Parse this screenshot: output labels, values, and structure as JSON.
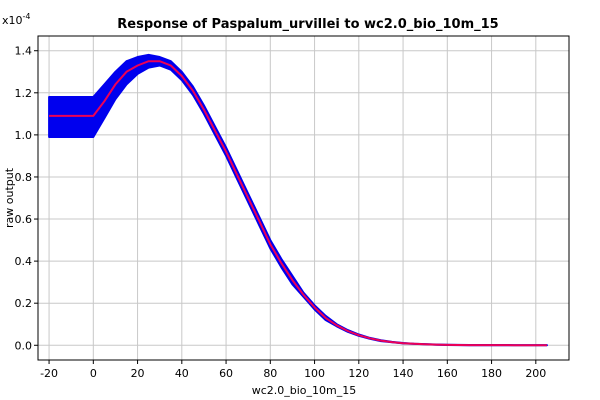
{
  "chart_data": {
    "type": "line",
    "title": "Response of Paspalum_urvillei to wc2.0_bio_10m_15",
    "xlabel": "wc2.0_bio_10m_15",
    "ylabel": "raw output",
    "y_multiplier_label": "x10",
    "y_multiplier_exponent": "-4",
    "xlim": [
      -25,
      215
    ],
    "ylim": [
      -0.07,
      1.47
    ],
    "x_ticks": [
      -20,
      0,
      20,
      40,
      60,
      80,
      100,
      120,
      140,
      160,
      180,
      200
    ],
    "x_tick_labels": [
      "-20",
      "0",
      "20",
      "40",
      "60",
      "80",
      "100",
      "120",
      "140",
      "160",
      "180",
      "200"
    ],
    "y_ticks": [
      0.0,
      0.2,
      0.4,
      0.6,
      0.8,
      1.0,
      1.2,
      1.4
    ],
    "y_tick_labels": [
      "0.0",
      "0.2",
      "0.4",
      "0.6",
      "0.8",
      "1.0",
      "1.2",
      "1.4"
    ],
    "grid": true,
    "colors": {
      "band": "#0000ee",
      "line": "#ee0055"
    },
    "series": [
      {
        "role": "mean",
        "x": [
          -20,
          -15,
          -10,
          -5,
          0,
          5,
          10,
          15,
          20,
          25,
          30,
          35,
          40,
          45,
          50,
          55,
          60,
          65,
          70,
          75,
          80,
          85,
          90,
          95,
          100,
          105,
          110,
          115,
          120,
          125,
          130,
          135,
          140,
          145,
          150,
          155,
          160,
          165,
          170,
          175,
          180,
          185,
          190,
          195,
          200,
          205
        ],
        "y": [
          1.09,
          1.09,
          1.09,
          1.09,
          1.09,
          1.16,
          1.24,
          1.3,
          1.33,
          1.35,
          1.35,
          1.33,
          1.28,
          1.21,
          1.12,
          1.02,
          0.92,
          0.81,
          0.7,
          0.59,
          0.48,
          0.39,
          0.31,
          0.24,
          0.18,
          0.13,
          0.095,
          0.068,
          0.048,
          0.033,
          0.022,
          0.015,
          0.01,
          0.007,
          0.005,
          0.003,
          0.002,
          0.0015,
          0.001,
          0.001,
          0.001,
          0.001,
          0.0005,
          0.0005,
          0.0005,
          0.0005
        ]
      },
      {
        "role": "upper",
        "x": [
          -20,
          -15,
          -10,
          -5,
          0,
          5,
          10,
          15,
          20,
          25,
          30,
          35,
          40,
          45,
          50,
          55,
          60,
          65,
          70,
          75,
          80,
          85,
          90,
          95,
          100,
          105,
          110,
          115,
          120,
          125,
          130,
          135,
          140,
          145,
          150,
          155,
          160,
          165,
          170,
          175,
          180,
          185,
          190,
          195,
          200,
          205
        ],
        "y": [
          1.18,
          1.18,
          1.18,
          1.18,
          1.18,
          1.24,
          1.3,
          1.35,
          1.37,
          1.38,
          1.37,
          1.35,
          1.3,
          1.23,
          1.14,
          1.04,
          0.94,
          0.83,
          0.72,
          0.61,
          0.5,
          0.41,
          0.33,
          0.25,
          0.19,
          0.14,
          0.1,
          0.072,
          0.051,
          0.035,
          0.024,
          0.016,
          0.011,
          0.0075,
          0.0055,
          0.0035,
          0.0025,
          0.002,
          0.0015,
          0.0015,
          0.0015,
          0.0015,
          0.001,
          0.001,
          0.001,
          0.001
        ]
      },
      {
        "role": "lower",
        "x": [
          -20,
          -15,
          -10,
          -5,
          0,
          5,
          10,
          15,
          20,
          25,
          30,
          35,
          40,
          45,
          50,
          55,
          60,
          65,
          70,
          75,
          80,
          85,
          90,
          95,
          100,
          105,
          110,
          115,
          120,
          125,
          130,
          135,
          140,
          145,
          150,
          155,
          160,
          165,
          170,
          175,
          180,
          185,
          190,
          195,
          200,
          205
        ],
        "y": [
          0.99,
          0.99,
          0.99,
          0.99,
          0.99,
          1.08,
          1.17,
          1.24,
          1.29,
          1.32,
          1.33,
          1.31,
          1.26,
          1.19,
          1.1,
          1.0,
          0.9,
          0.79,
          0.68,
          0.57,
          0.46,
          0.37,
          0.29,
          0.23,
          0.17,
          0.12,
          0.09,
          0.064,
          0.045,
          0.031,
          0.02,
          0.014,
          0.009,
          0.0065,
          0.0045,
          0.0025,
          0.0015,
          0.001,
          0.0005,
          0.0005,
          0.0005,
          0.0005,
          0.0,
          0.0,
          0.0,
          0.0
        ]
      }
    ]
  }
}
